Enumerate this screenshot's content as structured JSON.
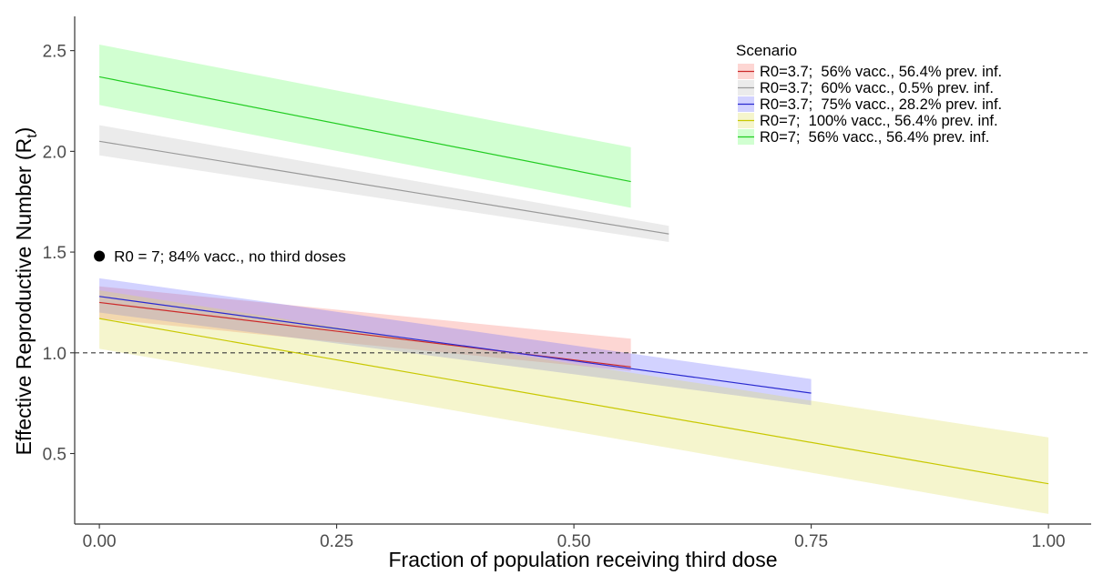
{
  "chart_data": {
    "type": "line",
    "title": "",
    "xlabel": "Fraction of population receiving third dose",
    "ylabel": "Effective Reproductive Number (R",
    "ylabel_subscript": "t",
    "ylabel_close": ")",
    "xlim": [
      -0.026,
      1.045
    ],
    "ylim": [
      0.15,
      2.67
    ],
    "xticks": [
      0.0,
      0.25,
      0.5,
      0.75,
      1.0
    ],
    "xtick_labels": [
      "0.00",
      "0.25",
      "0.50",
      "0.75",
      "1.00"
    ],
    "yticks": [
      0.5,
      1.0,
      1.5,
      2.0,
      2.5
    ],
    "ytick_labels": [
      "0.5",
      "1.0",
      "1.5",
      "2.0",
      "2.5"
    ],
    "grid": false,
    "reference_line": {
      "y": 1.0,
      "style": "dashed"
    },
    "legend": {
      "title": "Scenario",
      "placement": "top-right"
    },
    "series": [
      {
        "name": "R0=3.7;  56% vacc., 56.4% prev. inf.",
        "line_color": "#cc2a2a",
        "fill_color": "#f8766d",
        "fill_opacity": 0.3,
        "x": [
          0,
          0.56
        ],
        "y": [
          1.25,
          0.93
        ],
        "lower": [
          1.17,
          0.91
        ],
        "upper": [
          1.33,
          1.07
        ]
      },
      {
        "name": "R0=3.7;  60% vacc., 0.5% prev. inf.",
        "line_color": "#9a9a9a",
        "fill_color": "#bdbdbd",
        "fill_opacity": 0.3,
        "x": [
          0,
          0.6
        ],
        "y": [
          2.05,
          1.59
        ],
        "lower": [
          1.98,
          1.55
        ],
        "upper": [
          2.13,
          1.63
        ]
      },
      {
        "name": "R0=3.7;  75% vacc., 28.2% prev. inf.",
        "line_color": "#2a2ad0",
        "fill_color": "#6a6aff",
        "fill_opacity": 0.3,
        "x": [
          0,
          0.75
        ],
        "y": [
          1.28,
          0.8
        ],
        "lower": [
          1.2,
          0.74
        ],
        "upper": [
          1.37,
          0.87
        ]
      },
      {
        "name": "R0=7;  100% vacc., 56.4% prev. inf.",
        "line_color": "#c8c800",
        "fill_color": "#dede5a",
        "fill_opacity": 0.3,
        "x": [
          0,
          1.0
        ],
        "y": [
          1.17,
          0.35
        ],
        "lower": [
          1.02,
          0.2
        ],
        "upper": [
          1.31,
          0.58
        ]
      },
      {
        "name": "R0=7;  56% vacc., 56.4% prev. inf.",
        "line_color": "#22cc22",
        "fill_color": "#66ff66",
        "fill_opacity": 0.3,
        "x": [
          0,
          0.56
        ],
        "y": [
          2.37,
          1.85
        ],
        "lower": [
          2.23,
          1.72
        ],
        "upper": [
          2.53,
          2.02
        ]
      }
    ],
    "annotations": [
      {
        "marker": "dot",
        "x": 0.0,
        "y": 1.48,
        "label": "R0 = 7; 84% vacc., no third doses"
      }
    ]
  }
}
